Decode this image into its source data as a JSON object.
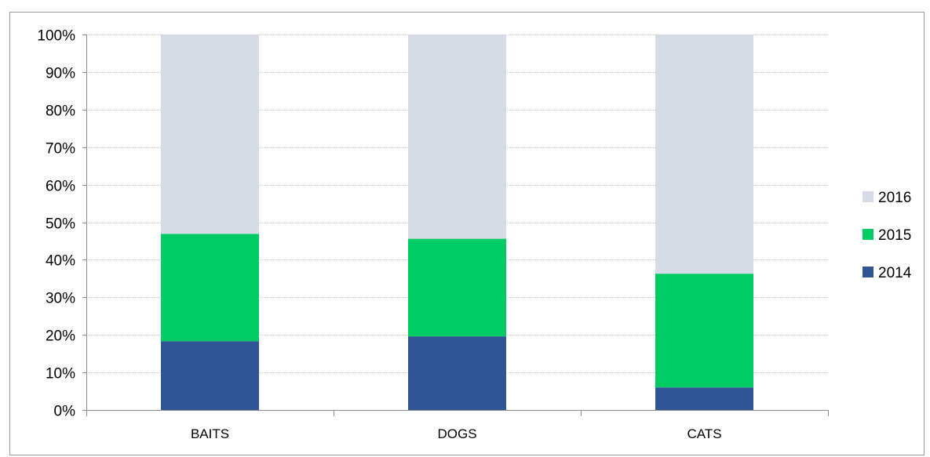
{
  "chart_data": {
    "type": "bar",
    "stacked": true,
    "percent_stacked": true,
    "categories": [
      "BAITS",
      "DOGS",
      "CATS"
    ],
    "series": [
      {
        "name": "2014",
        "color": "#2f5597",
        "values": [
          18.3,
          19.6,
          6.0
        ]
      },
      {
        "name": "2015",
        "color": "#00cc66",
        "values": [
          28.6,
          26.0,
          30.3
        ]
      },
      {
        "name": "2016",
        "color": "#d6dce5",
        "values": [
          53.1,
          54.4,
          63.7
        ]
      }
    ],
    "ylim": [
      0,
      100
    ],
    "yticks": [
      0,
      10,
      20,
      30,
      40,
      50,
      60,
      70,
      80,
      90,
      100
    ],
    "ytick_suffix": "%",
    "grid": true,
    "legend_position": "right",
    "legend_order": [
      "2016",
      "2015",
      "2014"
    ],
    "title": "",
    "xlabel": "",
    "ylabel": ""
  }
}
